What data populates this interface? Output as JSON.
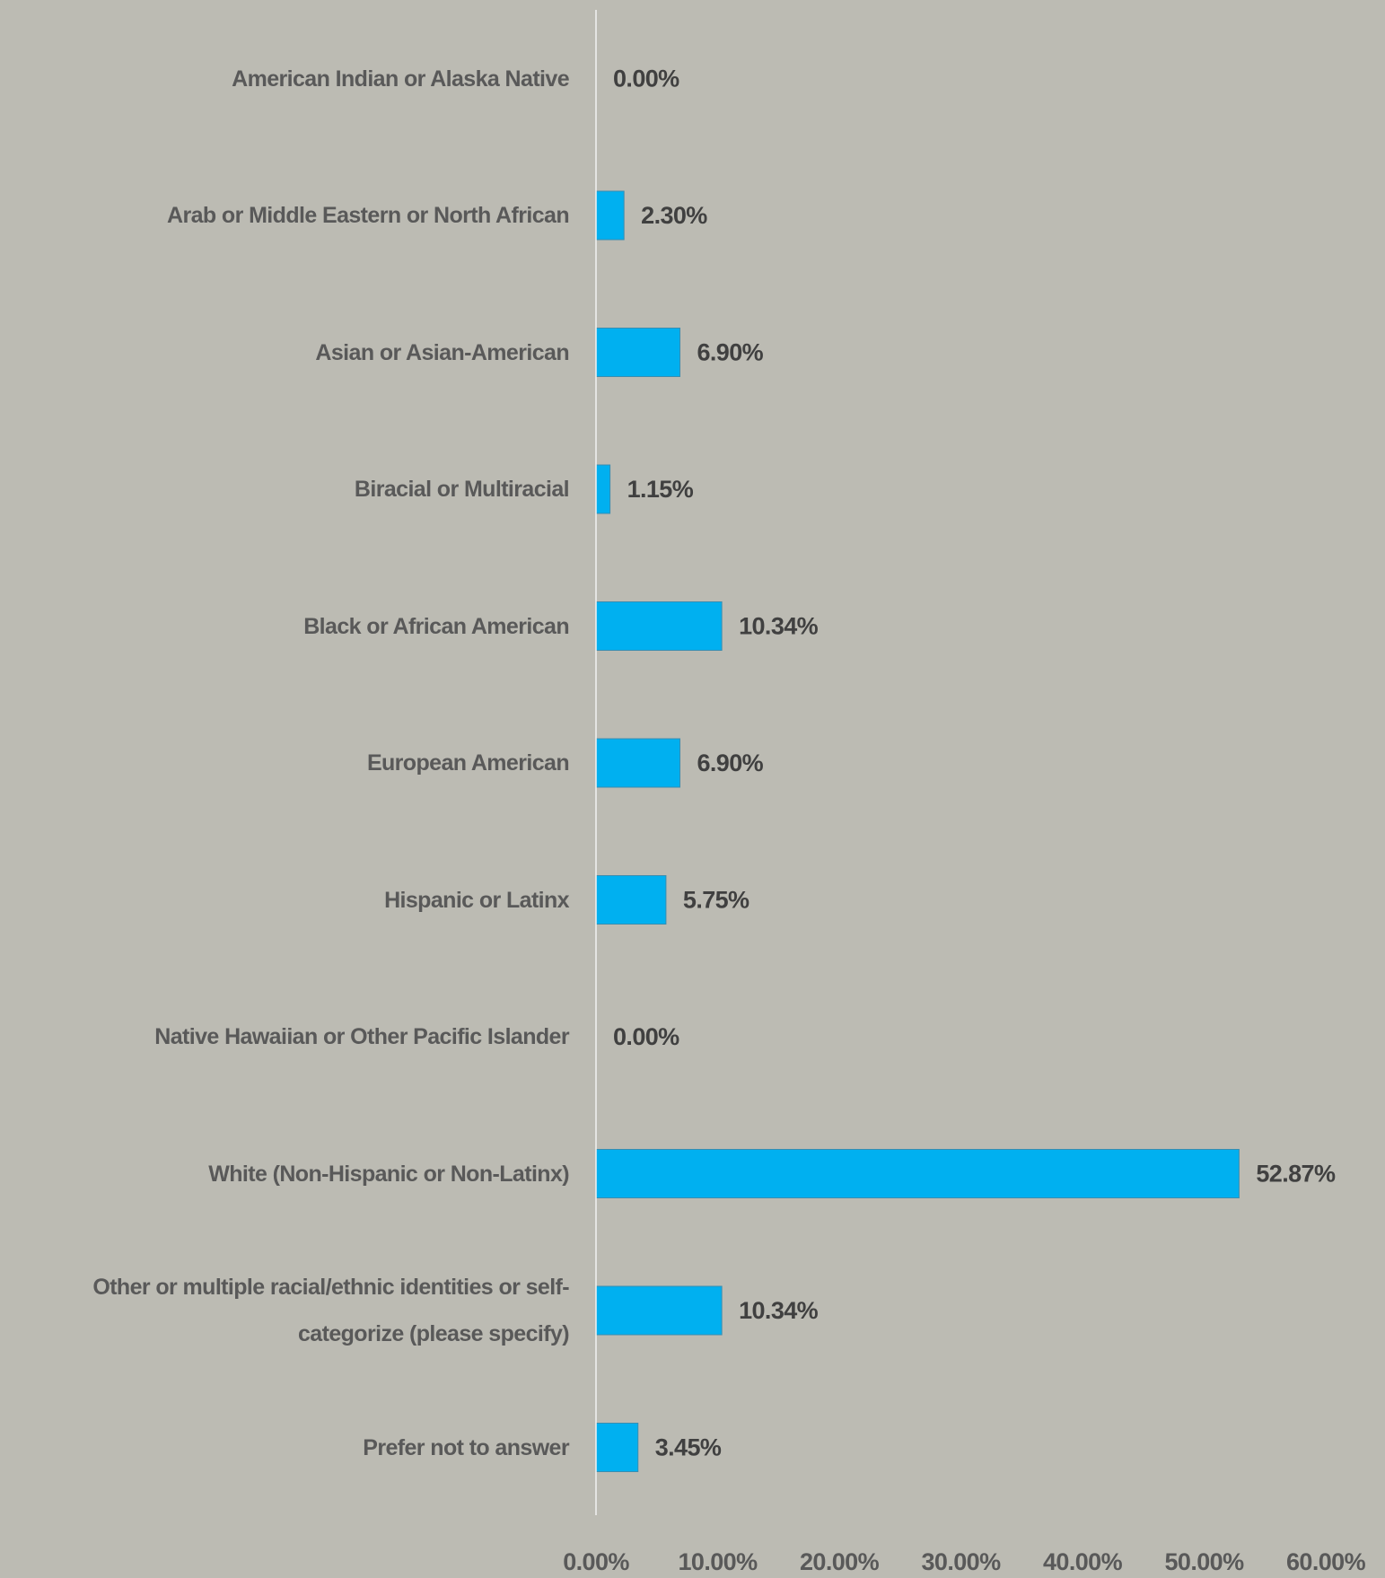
{
  "chart_data": {
    "type": "bar",
    "orientation": "horizontal",
    "categories": [
      "American Indian or Alaska Native",
      "Arab or Middle Eastern or North African",
      "Asian or Asian-American",
      "Biracial or Multiracial",
      "Black or African American",
      "European American",
      "Hispanic or Latinx",
      "Native Hawaiian or Other Pacific Islander",
      "White (Non-Hispanic or Non-Latinx)",
      "Other or multiple racial/ethnic identities or self-categorize (please specify)",
      "Prefer not to answer"
    ],
    "values": [
      0,
      2.3,
      6.9,
      1.15,
      10.34,
      6.9,
      5.75,
      0,
      52.87,
      10.34,
      3.45
    ],
    "value_labels": [
      "0.00%",
      "2.30%",
      "6.90%",
      "1.15%",
      "10.34%",
      "6.90%",
      "5.75%",
      "0.00%",
      "52.87%",
      "10.34%",
      "3.45%"
    ],
    "color": "#00b0f0",
    "xlim": [
      0,
      60
    ],
    "xticks": [
      {
        "value": 0,
        "label": "0.00%"
      },
      {
        "value": 10,
        "label": "10.00%"
      },
      {
        "value": 20,
        "label": "20.00%"
      },
      {
        "value": 30,
        "label": "30.00%"
      },
      {
        "value": 40,
        "label": "40.00%"
      },
      {
        "value": 50,
        "label": "50.00%"
      },
      {
        "value": 60,
        "label": "60.00%"
      }
    ],
    "grid": false
  }
}
